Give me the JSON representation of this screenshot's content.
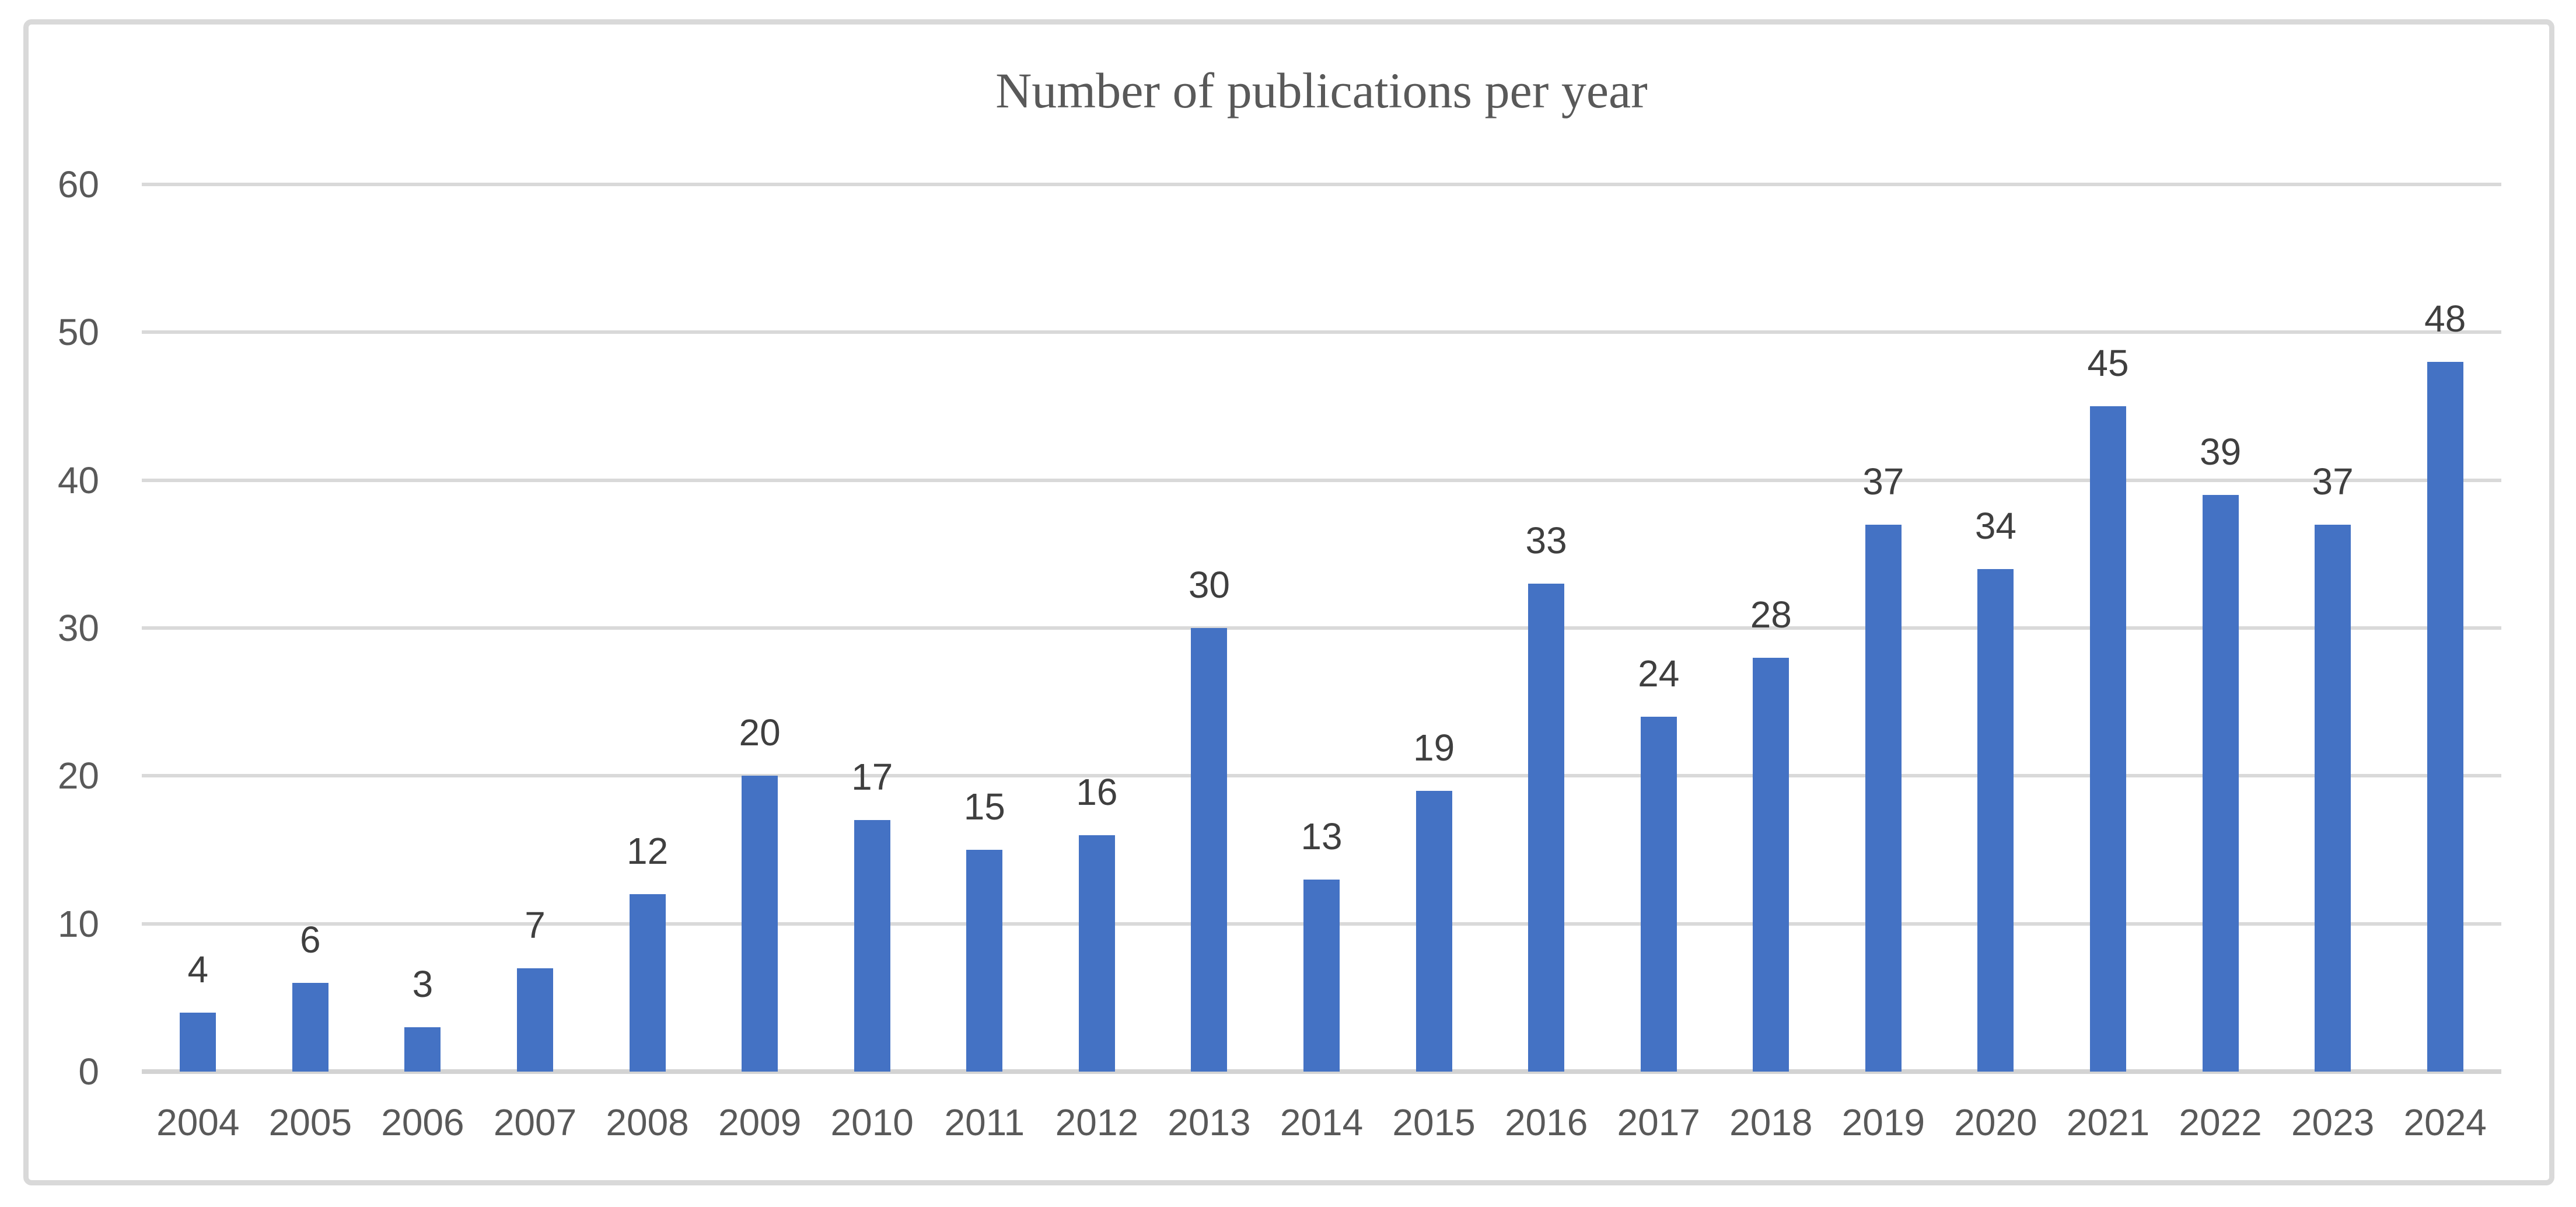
{
  "chart": {
    "title": "Number of publications per year"
  },
  "chart_data": {
    "type": "bar",
    "title": "Number of publications per year",
    "categories": [
      "2004",
      "2005",
      "2006",
      "2007",
      "2008",
      "2009",
      "2010",
      "2011",
      "2012",
      "2013",
      "2014",
      "2015",
      "2016",
      "2017",
      "2018",
      "2019",
      "2020",
      "2021",
      "2022",
      "2023",
      "2024"
    ],
    "values": [
      4,
      6,
      3,
      7,
      12,
      20,
      17,
      15,
      16,
      30,
      13,
      19,
      33,
      24,
      28,
      37,
      34,
      45,
      39,
      37,
      48
    ],
    "xlabel": "",
    "ylabel": "",
    "ylim": [
      0,
      60
    ],
    "yticks": [
      0,
      10,
      20,
      30,
      40,
      50,
      60
    ],
    "grid": "horizontal",
    "legend": "none",
    "data_labels": true,
    "colors": {
      "bar": "#4472C4",
      "gridline": "#D9D9D9",
      "axis_line": "#D3D3D3",
      "frame_border": "#D9D9D9",
      "title_text": "#595959",
      "tick_text": "#595959",
      "data_label_text": "#3F3F3F",
      "background": "#FFFFFF"
    }
  }
}
